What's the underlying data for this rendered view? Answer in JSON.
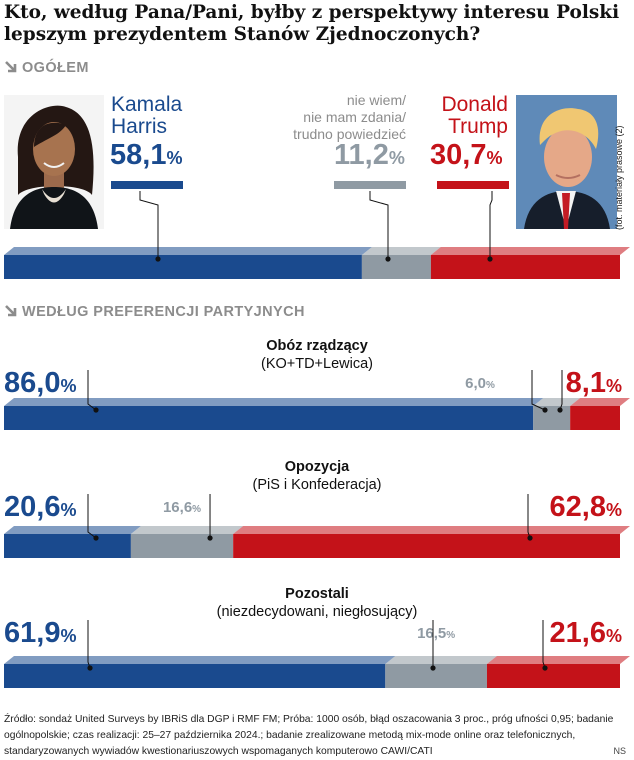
{
  "title": "Kto, według Pana/Pani, byłby z perspektywy interesu Polski lepszym prezydentem Stanów Zjednoczonych?",
  "sections": {
    "overall": "OGÓŁEM",
    "by_party": "WEDŁUG PREFERENCJI PARTYJNYCH"
  },
  "overall": {
    "harris_name_line1": "Kamala",
    "harris_name_line2": "Harris",
    "harris_pct": "58,1",
    "undecided_line1": "nie wiem/",
    "undecided_line2": "nie mam zdania/",
    "undecided_line3": "trudno powiedzieć",
    "undecided_pct": "11,2",
    "trump_name_line1": "Donald",
    "trump_name_line2": "Trump",
    "trump_pct": "30,7",
    "percent_sign": "%"
  },
  "photo_credit": "(fot. materiały prasowe (2)",
  "groups": [
    {
      "title": "Obóz rządzący",
      "subtitle": "(KO+TD+Lewica)",
      "harris_label": "86,0",
      "undecided_label": "6,0",
      "trump_label": "8,1"
    },
    {
      "title": "Opozycja",
      "subtitle": "(PiS i Konfederacja)",
      "harris_label": "20,6",
      "undecided_label": "16,6",
      "trump_label": "62,8"
    },
    {
      "title": "Pozostali",
      "subtitle": "(niezdecydowani, niegłosujący)",
      "harris_label": "61,9",
      "undecided_label": "16,5",
      "trump_label": "21,6"
    }
  ],
  "source": "Źródło: sondaż United Surveys by IBRiS dla DGP i RMF FM; Próba: 1000 osób, błąd oszacowania 3 proc., próg ufności 0,95; badanie ogólnopolskie; czas realizacji: 25–27 października 2024.; badanie zrealizowane metodą mix-mode online oraz telefonicznych, standaryzowanych wywiadów kwestionariuszowych wspomaganych komputerowo CAWI/CATI",
  "author": "NS",
  "colors": {
    "harris": "#1a4a8e",
    "undecided": "#8f9aa3",
    "trump": "#c41219"
  },
  "chart_data": {
    "type": "bar",
    "stacked": true,
    "orientation": "horizontal",
    "unit": "%",
    "categories": [
      "OGÓŁEM",
      "Obóz rządzący",
      "Opozycja",
      "Pozostali"
    ],
    "series": [
      {
        "name": "Kamala Harris",
        "values": [
          58.1,
          86.0,
          20.6,
          61.9
        ]
      },
      {
        "name": "nie wiem/nie mam zdania/trudno powiedzieć",
        "values": [
          11.2,
          6.0,
          16.6,
          16.5
        ]
      },
      {
        "name": "Donald Trump",
        "values": [
          30.7,
          8.1,
          62.8,
          21.6
        ]
      }
    ]
  }
}
